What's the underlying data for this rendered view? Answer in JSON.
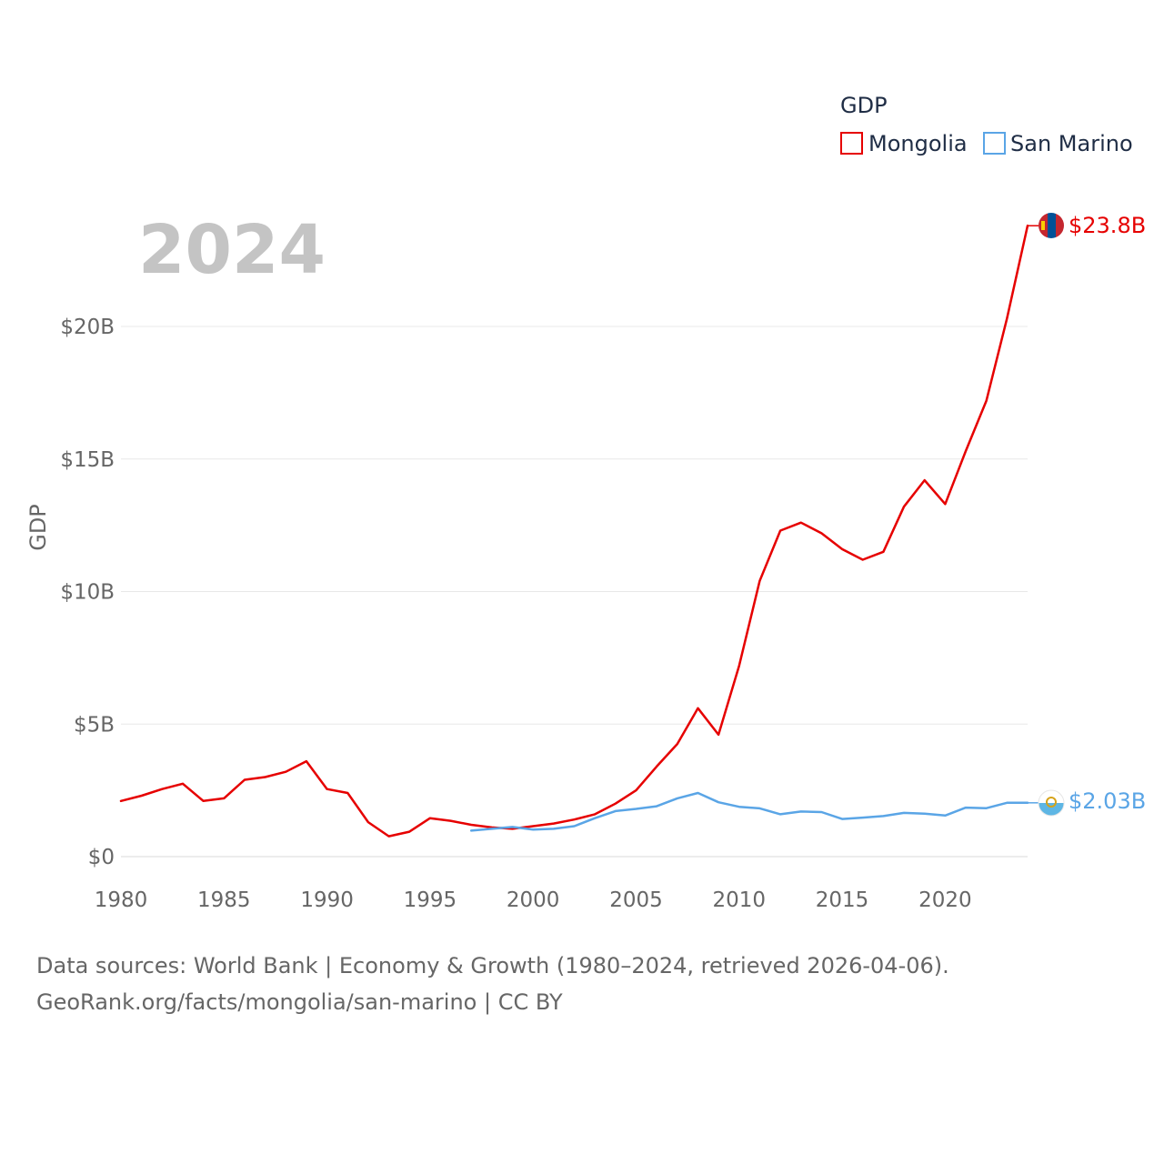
{
  "chart_data": {
    "type": "line",
    "title": "2024",
    "xlabel": "",
    "ylabel": "GDP",
    "xlim": [
      1980,
      2024
    ],
    "ylim": [
      0,
      25
    ],
    "x_ticks": [
      1980,
      1985,
      1990,
      1995,
      2000,
      2005,
      2010,
      2015,
      2020
    ],
    "x_tick_labels": [
      "1980",
      "1985",
      "1990",
      "1995",
      "2000",
      "2005",
      "2010",
      "2015",
      "2020"
    ],
    "y_ticks": [
      0,
      5,
      10,
      15,
      20
    ],
    "y_tick_labels": [
      "$0",
      "$5B",
      "$10B",
      "$15B",
      "$20B"
    ],
    "grid": true,
    "legend": {
      "title": "GDP",
      "position": "top-right"
    },
    "series": [
      {
        "name": "Mongolia",
        "color": "#e60000",
        "end_label": "$23.8B",
        "flag_icon": "mongolia-flag-icon",
        "x": [
          1980,
          1981,
          1982,
          1983,
          1984,
          1985,
          1986,
          1987,
          1988,
          1989,
          1990,
          1991,
          1992,
          1993,
          1994,
          1995,
          1996,
          1997,
          1998,
          1999,
          2000,
          2001,
          2002,
          2003,
          2004,
          2005,
          2006,
          2007,
          2008,
          2009,
          2010,
          2011,
          2012,
          2013,
          2014,
          2015,
          2016,
          2017,
          2018,
          2019,
          2020,
          2021,
          2022,
          2023,
          2024
        ],
        "values": [
          2.1,
          2.3,
          2.55,
          2.75,
          2.1,
          2.2,
          2.9,
          3.0,
          3.2,
          3.6,
          2.55,
          2.4,
          1.3,
          0.77,
          0.94,
          1.45,
          1.35,
          1.2,
          1.1,
          1.05,
          1.15,
          1.25,
          1.4,
          1.6,
          2.0,
          2.5,
          3.4,
          4.25,
          5.6,
          4.6,
          7.2,
          10.4,
          12.3,
          12.6,
          12.2,
          11.6,
          11.2,
          11.5,
          13.2,
          14.2,
          13.3,
          15.3,
          17.2,
          20.3,
          23.8
        ]
      },
      {
        "name": "San Marino",
        "color": "#5aa5e6",
        "end_label": "$2.03B",
        "flag_icon": "san-marino-flag-icon",
        "x": [
          1997,
          1998,
          1999,
          2000,
          2001,
          2002,
          2003,
          2004,
          2005,
          2006,
          2007,
          2008,
          2009,
          2010,
          2011,
          2012,
          2013,
          2014,
          2015,
          2016,
          2017,
          2018,
          2019,
          2020,
          2021,
          2022,
          2023,
          2024
        ],
        "values": [
          0.98,
          1.05,
          1.12,
          1.02,
          1.05,
          1.15,
          1.45,
          1.72,
          1.8,
          1.9,
          2.2,
          2.4,
          2.05,
          1.88,
          1.82,
          1.6,
          1.7,
          1.68,
          1.42,
          1.47,
          1.53,
          1.65,
          1.62,
          1.55,
          1.85,
          1.83,
          2.03,
          2.03
        ]
      }
    ]
  },
  "footer": {
    "line1": "Data sources: World Bank | Economy & Growth (1980–2024, retrieved 2026-04-06).",
    "line2": "GeoRank.org/facts/mongolia/san-marino | CC BY"
  }
}
